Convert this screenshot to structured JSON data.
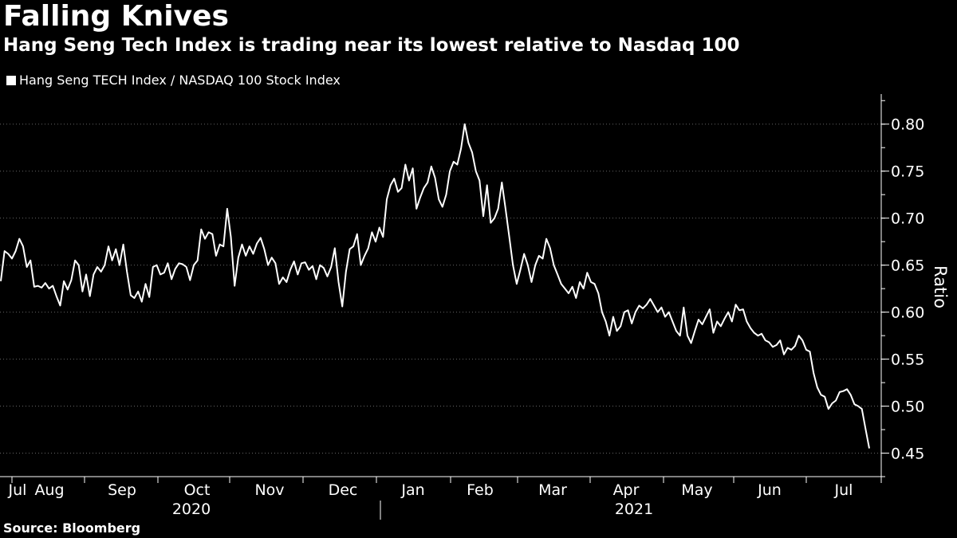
{
  "title": "Falling Knives",
  "subtitle": "Hang Seng Tech Index is trading near its lowest relative to Nasdaq 100",
  "legend_label": "Hang Seng TECH Index / NASDAQ 100 Stock Index",
  "source": "Source: Bloomberg",
  "colors": {
    "background": "#000000",
    "line": "#ffffff",
    "text": "#ffffff"
  },
  "chart_data": {
    "type": "line",
    "series": [
      {
        "name": "Hang Seng TECH Index / NASDAQ 100 Stock Index",
        "note": "approximate daily ratio values read from chart; index = trading-day position",
        "values": [
          0.633,
          0.665,
          0.662,
          0.657,
          0.665,
          0.678,
          0.67,
          0.648,
          0.655,
          0.627,
          0.628,
          0.626,
          0.631,
          0.625,
          0.628,
          0.617,
          0.607,
          0.633,
          0.624,
          0.634,
          0.655,
          0.65,
          0.622,
          0.64,
          0.617,
          0.64,
          0.648,
          0.643,
          0.65,
          0.67,
          0.655,
          0.667,
          0.65,
          0.672,
          0.643,
          0.618,
          0.615,
          0.622,
          0.611,
          0.63,
          0.616,
          0.648,
          0.65,
          0.64,
          0.642,
          0.652,
          0.635,
          0.646,
          0.652,
          0.651,
          0.648,
          0.634,
          0.65,
          0.655,
          0.688,
          0.678,
          0.685,
          0.683,
          0.66,
          0.672,
          0.67,
          0.71,
          0.68,
          0.628,
          0.658,
          0.672,
          0.66,
          0.67,
          0.662,
          0.673,
          0.679,
          0.667,
          0.65,
          0.658,
          0.652,
          0.63,
          0.637,
          0.632,
          0.645,
          0.654,
          0.64,
          0.652,
          0.653,
          0.645,
          0.649,
          0.635,
          0.65,
          0.647,
          0.638,
          0.648,
          0.668,
          0.632,
          0.606,
          0.643,
          0.667,
          0.67,
          0.683,
          0.65,
          0.66,
          0.668,
          0.685,
          0.675,
          0.69,
          0.68,
          0.72,
          0.735,
          0.742,
          0.728,
          0.732,
          0.757,
          0.74,
          0.753,
          0.71,
          0.722,
          0.732,
          0.738,
          0.755,
          0.743,
          0.72,
          0.712,
          0.725,
          0.75,
          0.76,
          0.757,
          0.774,
          0.8,
          0.78,
          0.77,
          0.75,
          0.74,
          0.702,
          0.735,
          0.695,
          0.7,
          0.71,
          0.738,
          0.71,
          0.68,
          0.65,
          0.63,
          0.645,
          0.662,
          0.65,
          0.632,
          0.65,
          0.66,
          0.657,
          0.678,
          0.668,
          0.65,
          0.64,
          0.63,
          0.625,
          0.62,
          0.627,
          0.615,
          0.632,
          0.625,
          0.642,
          0.632,
          0.63,
          0.62,
          0.6,
          0.59,
          0.575,
          0.595,
          0.58,
          0.585,
          0.6,
          0.602,
          0.588,
          0.6,
          0.607,
          0.604,
          0.608,
          0.614,
          0.607,
          0.6,
          0.605,
          0.595,
          0.6,
          0.59,
          0.58,
          0.575,
          0.605,
          0.575,
          0.567,
          0.58,
          0.592,
          0.587,
          0.595,
          0.603,
          0.578,
          0.59,
          0.585,
          0.593,
          0.6,
          0.59,
          0.608,
          0.602,
          0.603,
          0.59,
          0.583,
          0.578,
          0.575,
          0.577,
          0.57,
          0.568,
          0.563,
          0.565,
          0.57,
          0.555,
          0.562,
          0.56,
          0.564,
          0.575,
          0.57,
          0.56,
          0.558,
          0.535,
          0.52,
          0.512,
          0.51,
          0.497,
          0.503,
          0.506,
          0.515,
          0.516,
          0.518,
          0.512,
          0.502,
          0.5,
          0.497,
          0.476,
          0.455
        ]
      }
    ],
    "x_tick_labels": [
      "Jul",
      "Aug",
      "Sep",
      "Oct",
      "Nov",
      "Dec",
      "Jan",
      "Feb",
      "Mar",
      "Apr",
      "May",
      "Jun",
      "Jul"
    ],
    "year_labels": [
      "2020",
      "2021"
    ],
    "y_ticks": [
      0.45,
      0.5,
      0.55,
      0.6,
      0.65,
      0.7,
      0.75,
      0.8
    ],
    "y_tick_labels": [
      "0.45",
      "0.50",
      "0.55",
      "0.60",
      "0.65",
      "0.70",
      "0.75",
      "0.80"
    ],
    "ylim": [
      0.425,
      0.832
    ],
    "ylabel": "Ratio",
    "xlabel": "",
    "y_axis_position": "right",
    "grid": "horizontal dotted",
    "legend_position": "top-left"
  }
}
